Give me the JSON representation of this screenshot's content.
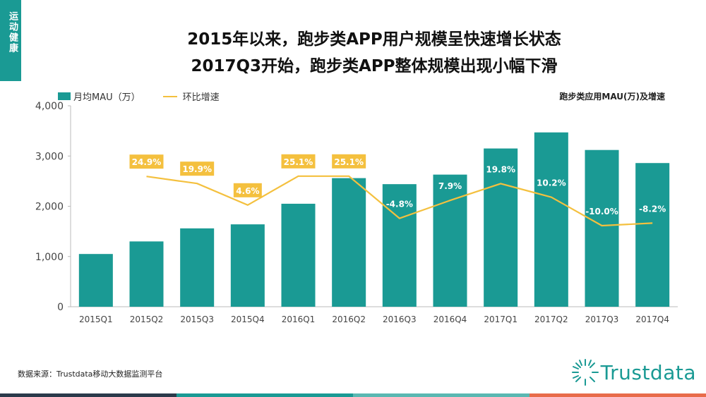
{
  "side_tab": "运动健康",
  "title_line1": "2015年以来，跑步类APP用户规模呈快速增长状态",
  "title_line2": "2017Q3开始，跑步类APP整体规模出现小幅下滑",
  "legend": {
    "bar_label": "月均MAU（万）",
    "line_label": "环比增速"
  },
  "chart_subtitle": "跑步类应用MAU(万)及增速",
  "source": "数据来源：Trustdata移动大数据监测平台",
  "logo_text": "Trustdata",
  "colors": {
    "bar": "#1a9a94",
    "line": "#f4c03e",
    "badge": "#f4c03e"
  },
  "chart_data": {
    "type": "bar",
    "title": "跑步类应用MAU(万)及增速",
    "categories": [
      "2015Q1",
      "2015Q2",
      "2015Q3",
      "2015Q4",
      "2016Q1",
      "2016Q2",
      "2016Q3",
      "2016Q4",
      "2017Q1",
      "2017Q2",
      "2017Q3",
      "2017Q4"
    ],
    "series": [
      {
        "name": "月均MAU（万）",
        "type": "bar",
        "values": [
          1050,
          1300,
          1560,
          1640,
          2050,
          2560,
          2440,
          2630,
          3150,
          3470,
          3120,
          2860
        ]
      },
      {
        "name": "环比增速",
        "type": "line",
        "values": [
          null,
          24.9,
          19.9,
          4.6,
          25.1,
          25.1,
          -4.8,
          7.9,
          19.8,
          10.2,
          -10.0,
          -8.2
        ],
        "labels": [
          "",
          "24.9%",
          "19.9%",
          "4.6%",
          "25.1%",
          "25.1%",
          "-4.8%",
          "7.9%",
          "19.8%",
          "10.2%",
          "-10.0%",
          "-8.2%"
        ]
      }
    ],
    "y_ticks": [
      "0",
      "1,000",
      "2,000",
      "3,000",
      "4,000"
    ],
    "ylim": [
      0,
      4000
    ]
  }
}
